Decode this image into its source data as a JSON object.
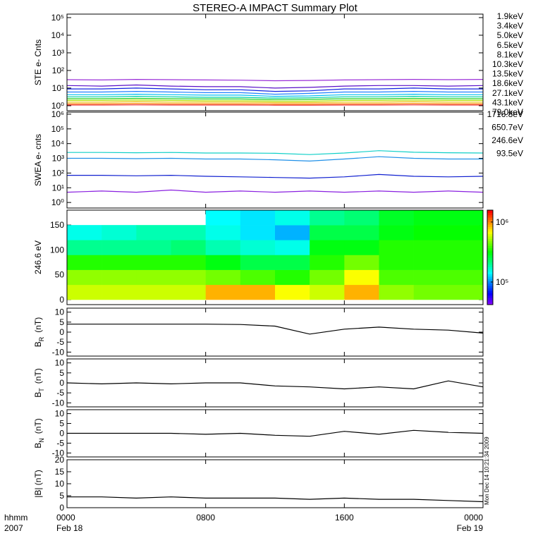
{
  "title": "STEREO-A IMPACT Summary Plot",
  "timestamp": "Mon Dec 14 10:21:34 2009",
  "x_axis": {
    "xlim": [
      0,
      24
    ],
    "xticks": [
      {
        "value": 0,
        "label": "0000"
      },
      {
        "value": 8,
        "label": "0800"
      },
      {
        "value": 16,
        "label": "1600"
      },
      {
        "value": 24,
        "label": "0000"
      }
    ],
    "date_labels": [
      {
        "value": 0,
        "label": "Feb 18"
      },
      {
        "value": 24,
        "label": "Feb 19"
      }
    ],
    "unit_label": "hhmm",
    "year_label": "2007"
  },
  "chart_data": [
    {
      "type": "line",
      "ylabel": "STE e- Cnts",
      "log": true,
      "ylim": [
        0.52,
        158000
      ],
      "yticks": [
        {
          "value": 1,
          "label": "10⁰"
        },
        {
          "value": 10,
          "label": "10¹"
        },
        {
          "value": 100,
          "label": "10²"
        },
        {
          "value": 1000,
          "label": "10³"
        },
        {
          "value": 10000,
          "label": "10⁴"
        },
        {
          "value": 100000,
          "label": "10⁵"
        }
      ],
      "x": [
        0,
        2,
        4,
        6,
        8,
        10,
        12,
        14,
        16,
        18,
        20,
        22,
        24
      ],
      "series": [
        {
          "name": "1.9keV",
          "color": "#9b30d8",
          "values": [
            30,
            29,
            31,
            30,
            29,
            28,
            26,
            27,
            29,
            30,
            31,
            30,
            31
          ]
        },
        {
          "name": "3.4keV",
          "color": "#5a10c8",
          "values": [
            14,
            13,
            15,
            13,
            12,
            12,
            10,
            11,
            13,
            14,
            14,
            13,
            14
          ]
        },
        {
          "name": "5.0keV",
          "color": "#1020e0",
          "values": [
            9,
            9,
            10,
            9,
            8,
            8,
            6.5,
            7,
            9,
            9,
            10,
            9,
            9
          ]
        },
        {
          "name": "6.5keV",
          "color": "#2080ff",
          "values": [
            6,
            6,
            6.5,
            6,
            5.5,
            5.5,
            4.5,
            5,
            6,
            6,
            6.5,
            6,
            6
          ]
        },
        {
          "name": "8.1keV",
          "color": "#00c0f0",
          "values": [
            4.2,
            4.2,
            4.5,
            4.2,
            4,
            4,
            3.4,
            3.6,
            4.2,
            4.2,
            4.5,
            4.2,
            4.2
          ]
        },
        {
          "name": "10.3keV",
          "color": "#00d0a0",
          "values": [
            3.2,
            3.2,
            3.4,
            3.2,
            3,
            3,
            2.7,
            2.8,
            3.2,
            3.2,
            3.4,
            3.2,
            3.2
          ]
        },
        {
          "name": "13.5keV",
          "color": "#20d020",
          "values": [
            2.5,
            2.5,
            2.6,
            2.5,
            2.4,
            2.4,
            2.2,
            2.3,
            2.5,
            2.5,
            2.6,
            2.5,
            2.5
          ]
        },
        {
          "name": "18.6keV",
          "color": "#b0e000",
          "values": [
            2,
            2,
            2.1,
            2,
            1.9,
            1.9,
            1.8,
            1.8,
            2,
            2,
            2.1,
            2,
            2
          ]
        },
        {
          "name": "27.1keV",
          "color": "#e8c000",
          "values": [
            1.6,
            1.6,
            1.7,
            1.6,
            1.6,
            1.6,
            1.5,
            1.5,
            1.6,
            1.6,
            1.7,
            1.6,
            1.6
          ]
        },
        {
          "name": "43.1keV",
          "color": "#ff8000",
          "values": [
            1.3,
            1.3,
            1.35,
            1.3,
            1.3,
            1.3,
            1.25,
            1.25,
            1.3,
            1.3,
            1.35,
            1.3,
            1.3
          ]
        },
        {
          "name": "79.0keV",
          "color": "#e82020",
          "values": [
            1.1,
            1.1,
            1.12,
            1.1,
            1.1,
            1.1,
            1.08,
            1.08,
            1.1,
            1.1,
            1.12,
            1.1,
            1.1
          ]
        }
      ]
    },
    {
      "type": "line",
      "ylabel": "SWEA e- cnts",
      "log": true,
      "ylim": [
        0.42,
        1380000
      ],
      "yticks": [
        {
          "value": 1,
          "label": "10⁰"
        },
        {
          "value": 10,
          "label": "10¹"
        },
        {
          "value": 100,
          "label": "10²"
        },
        {
          "value": 1000,
          "label": "10³"
        },
        {
          "value": 10000,
          "label": "10⁴"
        },
        {
          "value": 100000,
          "label": "10⁵"
        },
        {
          "value": 1000000,
          "label": "10⁶"
        }
      ],
      "x": [
        0,
        2,
        4,
        6,
        8,
        10,
        12,
        14,
        16,
        18,
        20,
        22,
        24
      ],
      "series": [
        {
          "name": "1716.8eV",
          "color": "#8a20e0",
          "values": [
            5,
            6,
            5,
            7,
            5,
            6,
            5,
            6,
            5,
            6,
            5,
            6,
            5
          ]
        },
        {
          "name": "650.7eV",
          "color": "#1020d0",
          "values": [
            70,
            70,
            65,
            70,
            60,
            55,
            50,
            45,
            55,
            80,
            60,
            55,
            60
          ]
        },
        {
          "name": "246.6eV",
          "color": "#2090e8",
          "values": [
            1000,
            1000,
            950,
            1000,
            900,
            900,
            800,
            650,
            900,
            1300,
            1000,
            900,
            900
          ]
        },
        {
          "name": "93.5eV",
          "color": "#10d0c8",
          "values": [
            2500,
            2500,
            2400,
            2500,
            2300,
            2300,
            2200,
            1800,
            2300,
            3300,
            2600,
            2400,
            2300
          ]
        }
      ]
    },
    {
      "type": "heatmap",
      "ylabel": "246.6 eV",
      "ylim": [
        -10,
        180
      ],
      "yticks": [
        0,
        50,
        100,
        150
      ],
      "x_bins": [
        0,
        2,
        4,
        6,
        8,
        10,
        12,
        14,
        16,
        18,
        20,
        22,
        24
      ],
      "y_bins": [
        0,
        30,
        60,
        90,
        120,
        150,
        180
      ],
      "clim": [
        42000,
        1580000
      ],
      "color_log": true,
      "cticks": [
        {
          "value": 100000,
          "label": "10⁵"
        },
        {
          "value": 1000000,
          "label": "10⁶"
        }
      ],
      "z": [
        [
          600000,
          500000,
          350000,
          200000,
          150000,
          null
        ],
        [
          600000,
          500000,
          350000,
          200000,
          160000,
          null
        ],
        [
          600000,
          500000,
          350000,
          200000,
          180000,
          null
        ],
        [
          600000,
          500000,
          350000,
          220000,
          180000,
          null
        ],
        [
          900000,
          450000,
          300000,
          180000,
          150000,
          140000
        ],
        [
          900000,
          400000,
          250000,
          160000,
          130000,
          130000
        ],
        [
          700000,
          350000,
          250000,
          150000,
          110000,
          150000
        ],
        [
          600000,
          450000,
          350000,
          300000,
          250000,
          200000
        ],
        [
          900000,
          700000,
          450000,
          300000,
          250000,
          220000
        ],
        [
          500000,
          400000,
          350000,
          350000,
          300000,
          280000
        ],
        [
          450000,
          400000,
          350000,
          350000,
          320000,
          300000
        ],
        [
          450000,
          400000,
          350000,
          350000,
          320000,
          300000
        ]
      ]
    },
    {
      "type": "line",
      "ylabel": "B",
      "ylabel_sub": "R",
      "ylabel_unit": "(nT)",
      "ylim": [
        -12,
        12
      ],
      "yticks": [
        -10,
        -5,
        0,
        5,
        10
      ],
      "x": [
        0,
        2,
        4,
        6,
        8,
        10,
        12,
        14,
        16,
        18,
        20,
        22,
        24
      ],
      "series": [
        {
          "color": "#000000",
          "values": [
            4,
            4,
            4,
            4,
            4,
            3.8,
            3,
            -1,
            1.5,
            2.5,
            1.5,
            1,
            -0.5
          ]
        }
      ]
    },
    {
      "type": "line",
      "ylabel": "B",
      "ylabel_sub": "T",
      "ylabel_unit": "(nT)",
      "ylim": [
        -12,
        12
      ],
      "yticks": [
        -10,
        -5,
        0,
        5,
        10
      ],
      "x": [
        0,
        2,
        4,
        6,
        8,
        10,
        12,
        14,
        16,
        18,
        20,
        22,
        24
      ],
      "series": [
        {
          "color": "#000000",
          "values": [
            0,
            -0.5,
            0,
            -0.5,
            0,
            0,
            -1.5,
            -2,
            -3,
            -2,
            -3,
            1,
            -2
          ]
        }
      ]
    },
    {
      "type": "line",
      "ylabel": "B",
      "ylabel_sub": "N",
      "ylabel_unit": "(nT)",
      "ylim": [
        -12,
        12
      ],
      "yticks": [
        -10,
        -5,
        0,
        5,
        10
      ],
      "x": [
        0,
        2,
        4,
        6,
        8,
        10,
        12,
        14,
        16,
        18,
        20,
        22,
        24
      ],
      "series": [
        {
          "color": "#000000",
          "values": [
            0,
            0,
            0,
            0,
            -0.5,
            0,
            -1,
            -1.5,
            1,
            -0.5,
            1.5,
            0.5,
            0
          ]
        }
      ]
    },
    {
      "type": "line",
      "ylabel": "|B| (nT)",
      "ylim": [
        0,
        20
      ],
      "yticks": [
        0,
        5,
        10,
        15,
        20
      ],
      "x": [
        0,
        2,
        4,
        6,
        8,
        10,
        12,
        14,
        16,
        18,
        20,
        22,
        24
      ],
      "series": [
        {
          "color": "#000000",
          "values": [
            4.5,
            4.5,
            4,
            4.5,
            4,
            4,
            4,
            3.5,
            4,
            3.5,
            3.5,
            3,
            2.5
          ]
        }
      ]
    }
  ]
}
